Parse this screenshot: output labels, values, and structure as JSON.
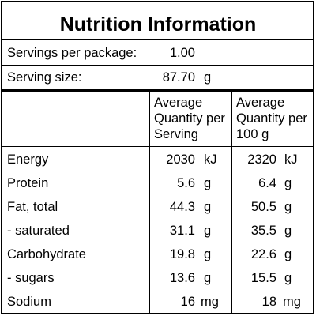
{
  "title": "Nutrition Information",
  "servings_per_package": {
    "label": "Servings per package:",
    "value": "1.00"
  },
  "serving_size": {
    "label": "Serving size:",
    "value": "87.70",
    "unit": "g"
  },
  "columns": {
    "per_serving": [
      "Average",
      "Quantity per",
      "Serving"
    ],
    "per_100g": [
      "Average",
      "Quantity per",
      "100 g"
    ]
  },
  "rows": [
    {
      "name": "Energy",
      "serving": "2030",
      "serving_unit": "kJ",
      "per100": "2320",
      "per100_unit": "kJ"
    },
    {
      "name": "Protein",
      "serving": "5.6",
      "serving_unit": "g",
      "per100": "6.4",
      "per100_unit": "g"
    },
    {
      "name": "Fat, total",
      "serving": "44.3",
      "serving_unit": "g",
      "per100": "50.5",
      "per100_unit": "g"
    },
    {
      "name": "- saturated",
      "serving": "31.1",
      "serving_unit": "g",
      "per100": "35.5",
      "per100_unit": "g"
    },
    {
      "name": "Carbohydrate",
      "serving": "19.8",
      "serving_unit": "g",
      "per100": "22.6",
      "per100_unit": "g"
    },
    {
      "name": "- sugars",
      "serving": "13.6",
      "serving_unit": "g",
      "per100": "15.5",
      "per100_unit": "g"
    },
    {
      "name": "Sodium",
      "serving": "16",
      "serving_unit": "mg",
      "per100": "18",
      "per100_unit": "mg"
    }
  ]
}
